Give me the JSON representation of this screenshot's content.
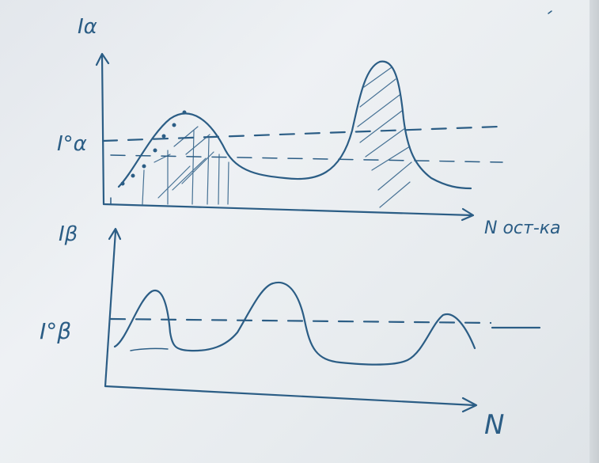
{
  "labels": {
    "i_alpha_axis": "Iα",
    "i_alpha_zero": "I°α",
    "x_axis_top": "N ост-ка",
    "i_beta_axis": "Iβ",
    "i_beta_zero": "I°β",
    "x_axis_bottom": "N"
  },
  "colors": {
    "ink": "#2b5d85",
    "whiteboard": "#e6eaee"
  }
}
